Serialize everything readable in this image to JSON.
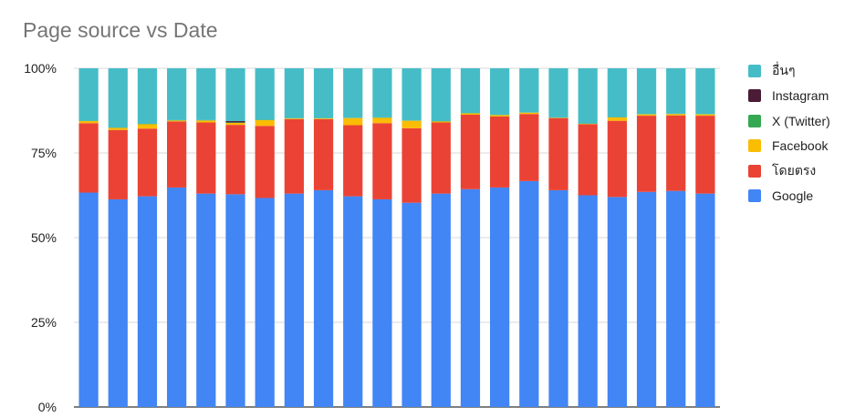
{
  "chart_data": {
    "type": "bar",
    "stacked": true,
    "percent": true,
    "title": "Page source vs Date",
    "xlabel": "",
    "ylabel": "",
    "ylim": [
      0,
      100
    ],
    "yticks": [
      "0%",
      "25%",
      "50%",
      "75%",
      "100%"
    ],
    "grid": true,
    "legend_position": "right",
    "series": [
      {
        "name": "Google",
        "color": "#4285F4",
        "values": [
          63.3,
          61.3,
          62.2,
          64.8,
          63.0,
          62.8,
          61.7,
          63.0,
          64.0,
          62.2,
          61.3,
          60.3,
          63.0,
          64.3,
          64.8,
          66.7,
          64.0,
          62.5,
          62.0,
          63.5,
          63.8,
          63.0
        ]
      },
      {
        "name": "โดยตรง",
        "color": "#EA4335",
        "values": [
          20.5,
          20.5,
          20.0,
          19.5,
          21.0,
          20.5,
          21.3,
          22.0,
          21.0,
          21.0,
          22.5,
          22.0,
          21.0,
          22.0,
          21.0,
          19.8,
          21.3,
          21.0,
          22.5,
          22.5,
          22.3,
          23.0
        ]
      },
      {
        "name": "Facebook",
        "color": "#FBBC04",
        "values": [
          0.6,
          0.6,
          1.3,
          0.3,
          0.6,
          0.6,
          1.7,
          0.2,
          0.2,
          2.1,
          1.6,
          2.2,
          0.3,
          0.4,
          0.4,
          0.4,
          0.1,
          0.1,
          1.0,
          0.4,
          0.4,
          0.4
        ]
      },
      {
        "name": "X (Twitter)",
        "color": "#34A853",
        "values": [
          0.1,
          0.1,
          0.1,
          0.1,
          0.1,
          0.1,
          0.1,
          0.1,
          0.1,
          0.1,
          0.1,
          0.1,
          0.1,
          0.1,
          0.1,
          0.1,
          0.1,
          0.1,
          0.1,
          0.1,
          0.1,
          0.1
        ]
      },
      {
        "name": "Instagram",
        "color": "#4A1C36",
        "values": [
          0.0,
          0.0,
          0.0,
          0.0,
          0.0,
          0.4,
          0.0,
          0.0,
          0.0,
          0.0,
          0.0,
          0.0,
          0.0,
          0.0,
          0.0,
          0.0,
          0.0,
          0.0,
          0.0,
          0.0,
          0.0,
          0.0
        ]
      },
      {
        "name": "อื่นๆ",
        "color": "#46BDC6",
        "values": [
          15.5,
          17.5,
          16.4,
          15.3,
          15.3,
          15.6,
          15.2,
          14.7,
          14.7,
          14.6,
          14.5,
          15.4,
          15.6,
          13.2,
          13.7,
          13.0,
          14.5,
          16.3,
          14.4,
          13.5,
          13.4,
          13.5
        ]
      }
    ]
  },
  "legend_order": [
    "อื่นๆ",
    "Instagram",
    "X (Twitter)",
    "Facebook",
    "โดยตรง",
    "Google"
  ]
}
